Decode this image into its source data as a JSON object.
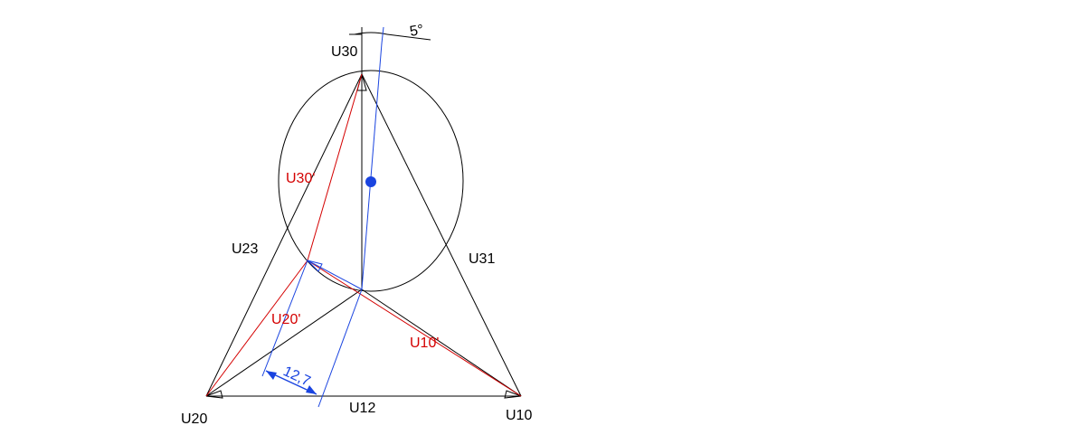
{
  "labels": {
    "u30": "U30",
    "u20": "U20",
    "u10": "U10",
    "u23": "U23",
    "u31": "U31",
    "u12": "U12",
    "u30_prime": "U30'",
    "u20_prime": "U20'",
    "u10_prime": "U10'",
    "dimension": "12,7",
    "angle": "5°"
  },
  "colors": {
    "lines": "#000000",
    "shifted": "#d40000",
    "construction": "#1a44e0"
  }
}
